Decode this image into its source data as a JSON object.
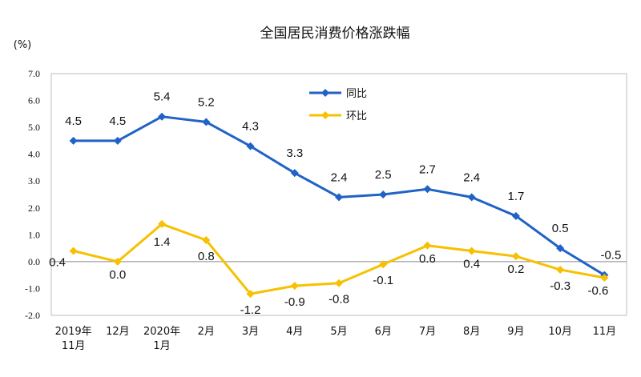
{
  "chart_data": {
    "type": "line",
    "title": "全国居民消费价格涨跌幅",
    "ylabel": "(%)",
    "ylim": [
      -2.0,
      7.0
    ],
    "yticks": [
      "7.0",
      "6.0",
      "5.0",
      "4.0",
      "3.0",
      "2.0",
      "1.0",
      "0.0",
      "-1.0",
      "-2.0"
    ],
    "categories": [
      [
        "2019年",
        "11月"
      ],
      [
        "12月"
      ],
      [
        "2020年",
        "1月"
      ],
      [
        "2月"
      ],
      [
        "3月"
      ],
      [
        "4月"
      ],
      [
        "5月"
      ],
      [
        "6月"
      ],
      [
        "7月"
      ],
      [
        "8月"
      ],
      [
        "9月"
      ],
      [
        "10月"
      ],
      [
        "11月"
      ]
    ],
    "legend_position": "top-right",
    "series": [
      {
        "name": "同比",
        "color": "#2062c6",
        "values": [
          4.5,
          4.5,
          5.4,
          5.2,
          4.3,
          3.3,
          2.4,
          2.5,
          2.7,
          2.4,
          1.7,
          0.5,
          -0.5
        ],
        "labels": [
          "4.5",
          "4.5",
          "5.4",
          "5.2",
          "4.3",
          "3.3",
          "2.4",
          "2.5",
          "2.7",
          "2.4",
          "1.7",
          "0.5",
          "-0.5"
        ]
      },
      {
        "name": "环比",
        "color": "#f7c000",
        "values": [
          0.4,
          0.0,
          1.4,
          0.8,
          -1.2,
          -0.9,
          -0.8,
          -0.1,
          0.6,
          0.4,
          0.2,
          -0.3,
          -0.6
        ],
        "labels": [
          "0.4",
          "0.0",
          "1.4",
          "0.8",
          "-1.2",
          "-0.9",
          "-0.8",
          "-0.1",
          "0.6",
          "0.4",
          "0.2",
          "-0.3",
          "-0.6"
        ]
      }
    ]
  }
}
